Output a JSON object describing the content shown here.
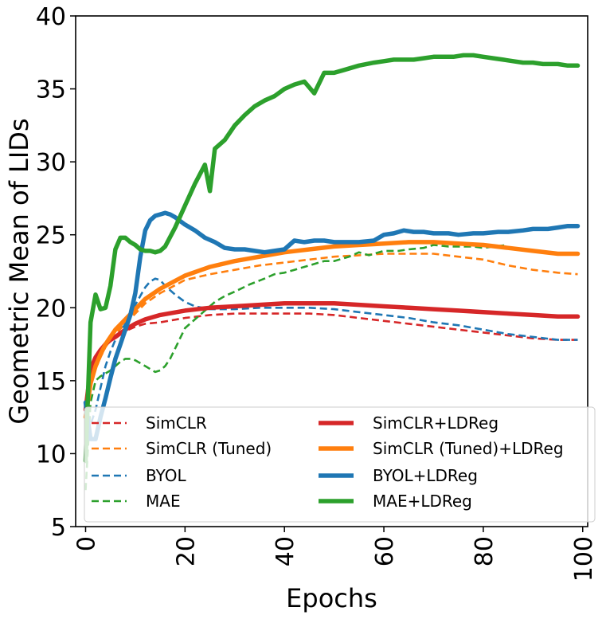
{
  "chart_data": {
    "type": "line",
    "xlabel": "Epochs",
    "ylabel": "Geometric Mean of LIDs",
    "xlim": [
      -2,
      101
    ],
    "ylim": [
      5,
      40
    ],
    "xticks": [
      0,
      20,
      40,
      60,
      80,
      100
    ],
    "yticks": [
      5,
      10,
      15,
      20,
      25,
      30,
      35,
      40
    ],
    "xtick_labels": [
      "0",
      "20",
      "40",
      "60",
      "80",
      "100"
    ],
    "ytick_labels": [
      "5",
      "10",
      "15",
      "20",
      "25",
      "30",
      "35",
      "40"
    ],
    "grid": false,
    "legend_position": "lower-left",
    "series": [
      {
        "name": "SimCLR",
        "color": "#d62728",
        "style": "dashed",
        "x": [
          0,
          1,
          2,
          3,
          4,
          5,
          6,
          8,
          10,
          12,
          15,
          20,
          25,
          30,
          35,
          40,
          45,
          50,
          55,
          60,
          65,
          70,
          75,
          80,
          85,
          90,
          95,
          99
        ],
        "y": [
          12.0,
          15.5,
          16.5,
          17.0,
          17.4,
          17.7,
          18.0,
          18.4,
          18.7,
          18.9,
          19.0,
          19.3,
          19.5,
          19.6,
          19.6,
          19.6,
          19.6,
          19.5,
          19.3,
          19.1,
          18.9,
          18.7,
          18.5,
          18.3,
          18.1,
          17.9,
          17.8,
          17.8
        ]
      },
      {
        "name": "SimCLR (Tuned)",
        "color": "#ff7f0e",
        "style": "dashed",
        "x": [
          0,
          1,
          2,
          3,
          4,
          5,
          6,
          8,
          10,
          12,
          15,
          20,
          25,
          30,
          35,
          40,
          45,
          50,
          55,
          60,
          65,
          70,
          75,
          80,
          85,
          90,
          95,
          99
        ],
        "y": [
          12.0,
          14.5,
          15.8,
          16.6,
          17.3,
          17.8,
          18.2,
          18.9,
          19.6,
          20.3,
          21.0,
          21.9,
          22.3,
          22.6,
          22.9,
          23.1,
          23.3,
          23.5,
          23.6,
          23.7,
          23.7,
          23.7,
          23.5,
          23.3,
          22.9,
          22.6,
          22.4,
          22.3
        ]
      },
      {
        "name": "BYOL",
        "color": "#1f77b4",
        "style": "dashed",
        "x": [
          0,
          1,
          2,
          3,
          4,
          5,
          6,
          8,
          10,
          12,
          13,
          14,
          15,
          16,
          18,
          20,
          22,
          25,
          30,
          35,
          40,
          45,
          50,
          55,
          60,
          65,
          70,
          75,
          80,
          85,
          90,
          95,
          99
        ],
        "y": [
          11.5,
          12.0,
          13.0,
          14.5,
          16.0,
          17.0,
          17.8,
          18.9,
          20.2,
          21.4,
          21.8,
          22.0,
          21.9,
          21.5,
          20.9,
          20.4,
          20.1,
          19.9,
          19.9,
          20.0,
          20.0,
          20.0,
          19.9,
          19.7,
          19.5,
          19.3,
          19.0,
          18.8,
          18.5,
          18.2,
          18.0,
          17.8,
          17.8
        ]
      },
      {
        "name": "MAE",
        "color": "#2ca02c",
        "style": "dashed",
        "x": [
          0,
          1,
          2,
          3,
          4,
          5,
          6,
          7,
          8,
          9,
          10,
          11,
          12,
          13,
          14,
          15,
          16,
          17,
          18,
          19,
          20,
          22,
          24,
          26,
          28,
          30,
          33,
          36,
          38,
          40,
          42,
          45,
          48,
          50,
          53,
          55,
          57,
          60,
          63,
          65,
          68,
          70,
          73,
          75,
          78,
          80,
          82,
          85
        ],
        "y": [
          7.5,
          13.5,
          15.0,
          15.3,
          15.5,
          15.7,
          16.0,
          16.3,
          16.5,
          16.5,
          16.4,
          16.2,
          16.0,
          15.8,
          15.6,
          15.7,
          16.0,
          16.5,
          17.2,
          17.9,
          18.6,
          19.2,
          19.8,
          20.4,
          20.8,
          21.1,
          21.6,
          22.0,
          22.3,
          22.4,
          22.6,
          22.9,
          23.2,
          23.2,
          23.5,
          23.8,
          23.6,
          23.9,
          23.9,
          24.0,
          24.1,
          24.3,
          24.2,
          24.2,
          24.2,
          24.1,
          24.2,
          24.3
        ]
      },
      {
        "name": "SimCLR+LDReg",
        "color": "#d62728",
        "style": "solid",
        "x": [
          0,
          1,
          2,
          3,
          4,
          5,
          6,
          8,
          10,
          12,
          15,
          20,
          25,
          30,
          35,
          40,
          45,
          50,
          55,
          60,
          65,
          70,
          75,
          80,
          85,
          90,
          95,
          99
        ],
        "y": [
          13.0,
          15.8,
          16.6,
          17.1,
          17.5,
          17.8,
          18.0,
          18.5,
          18.9,
          19.2,
          19.5,
          19.8,
          20.0,
          20.1,
          20.2,
          20.3,
          20.3,
          20.3,
          20.2,
          20.1,
          20.0,
          19.9,
          19.8,
          19.7,
          19.6,
          19.5,
          19.4,
          19.4
        ]
      },
      {
        "name": "SimCLR (Tuned)+LDReg",
        "color": "#ff7f0e",
        "style": "solid",
        "x": [
          0,
          1,
          2,
          3,
          4,
          5,
          6,
          8,
          10,
          12,
          15,
          20,
          25,
          30,
          35,
          40,
          45,
          50,
          55,
          60,
          65,
          70,
          75,
          80,
          85,
          90,
          95,
          99
        ],
        "y": [
          12.5,
          14.8,
          16.0,
          16.8,
          17.5,
          18.0,
          18.5,
          19.2,
          19.9,
          20.6,
          21.3,
          22.2,
          22.8,
          23.2,
          23.5,
          23.8,
          24.0,
          24.2,
          24.3,
          24.4,
          24.5,
          24.5,
          24.4,
          24.3,
          24.1,
          23.9,
          23.7,
          23.7
        ]
      },
      {
        "name": "BYOL+LDReg",
        "color": "#1f77b4",
        "style": "solid",
        "x": [
          0,
          1,
          2,
          3,
          4,
          5,
          6,
          7,
          8,
          9,
          10,
          11,
          12,
          13,
          14,
          15,
          16,
          17,
          18,
          20,
          22,
          24,
          26,
          28,
          30,
          32,
          34,
          36,
          38,
          40,
          42,
          44,
          46,
          48,
          50,
          52,
          55,
          58,
          60,
          62,
          64,
          66,
          68,
          70,
          73,
          75,
          78,
          80,
          83,
          85,
          88,
          90,
          93,
          95,
          97,
          99
        ],
        "y": [
          13.5,
          11.0,
          11.0,
          12.5,
          13.8,
          15.2,
          16.5,
          17.5,
          18.5,
          19.5,
          21.0,
          23.5,
          25.3,
          26.0,
          26.3,
          26.4,
          26.5,
          26.4,
          26.2,
          25.7,
          25.3,
          24.8,
          24.5,
          24.1,
          24.0,
          24.0,
          23.9,
          23.8,
          23.9,
          24.0,
          24.6,
          24.5,
          24.6,
          24.6,
          24.5,
          24.5,
          24.5,
          24.6,
          25.0,
          25.1,
          25.3,
          25.2,
          25.2,
          25.1,
          25.1,
          25.0,
          25.1,
          25.1,
          25.2,
          25.2,
          25.3,
          25.4,
          25.4,
          25.5,
          25.6,
          25.6
        ]
      },
      {
        "name": "MAE+LDReg",
        "color": "#2ca02c",
        "style": "solid",
        "x": [
          0,
          1,
          2,
          3,
          4,
          5,
          6,
          7,
          8,
          9,
          10,
          11,
          12,
          13,
          14,
          15,
          16,
          18,
          20,
          22,
          24,
          25,
          26,
          28,
          30,
          32,
          34,
          36,
          38,
          40,
          42,
          44,
          46,
          48,
          50,
          52,
          55,
          58,
          60,
          62,
          64,
          66,
          68,
          70,
          72,
          74,
          76,
          78,
          80,
          82,
          84,
          86,
          88,
          90,
          92,
          95,
          97,
          99
        ],
        "y": [
          9.5,
          19.0,
          20.9,
          19.9,
          20.0,
          21.5,
          24.0,
          24.8,
          24.8,
          24.5,
          24.3,
          24.0,
          23.9,
          23.9,
          23.8,
          23.9,
          24.2,
          25.5,
          27.0,
          28.5,
          29.8,
          28.0,
          30.9,
          31.5,
          32.5,
          33.2,
          33.8,
          34.2,
          34.5,
          35.0,
          35.3,
          35.5,
          34.7,
          36.1,
          36.1,
          36.3,
          36.6,
          36.8,
          36.9,
          37.0,
          37.0,
          37.0,
          37.1,
          37.2,
          37.2,
          37.2,
          37.3,
          37.3,
          37.2,
          37.1,
          37.0,
          36.9,
          36.8,
          36.8,
          36.7,
          36.7,
          36.6,
          36.6
        ]
      }
    ]
  }
}
